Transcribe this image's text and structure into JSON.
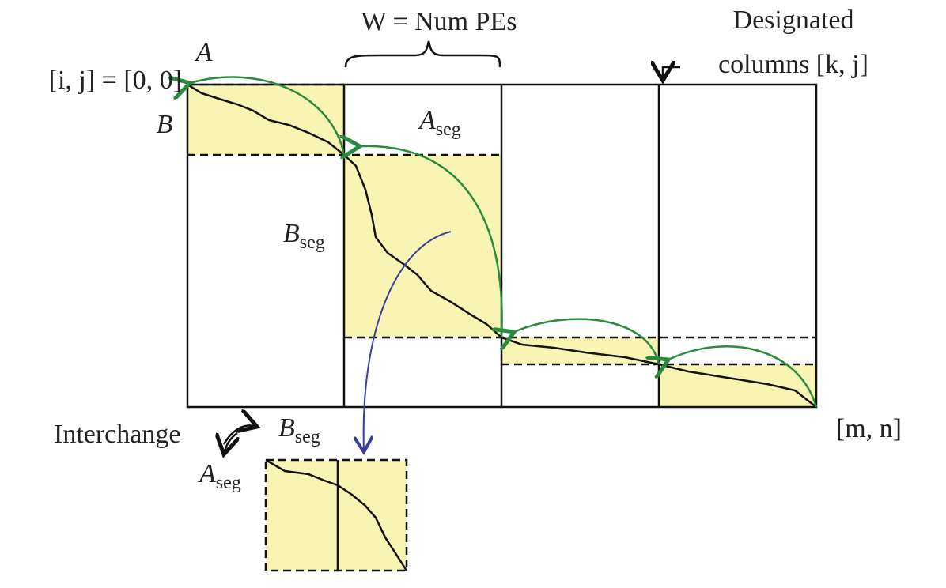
{
  "labels": {
    "width": "W = Num PEs",
    "designated_line1": "Designated",
    "designated_line2": "columns [k, j]",
    "a": "A",
    "origin": "[i, j] = [0, 0]",
    "b": "B",
    "a_seg": {
      "base": "A",
      "sub": "seg"
    },
    "b_seg": {
      "base": "B",
      "sub": "seg"
    },
    "end": "[m, n]",
    "interchange": "Interchange",
    "interchange_b_seg": {
      "base": "B",
      "sub": "seg"
    },
    "interchange_a_seg": {
      "base": "A",
      "sub": "seg"
    }
  }
}
